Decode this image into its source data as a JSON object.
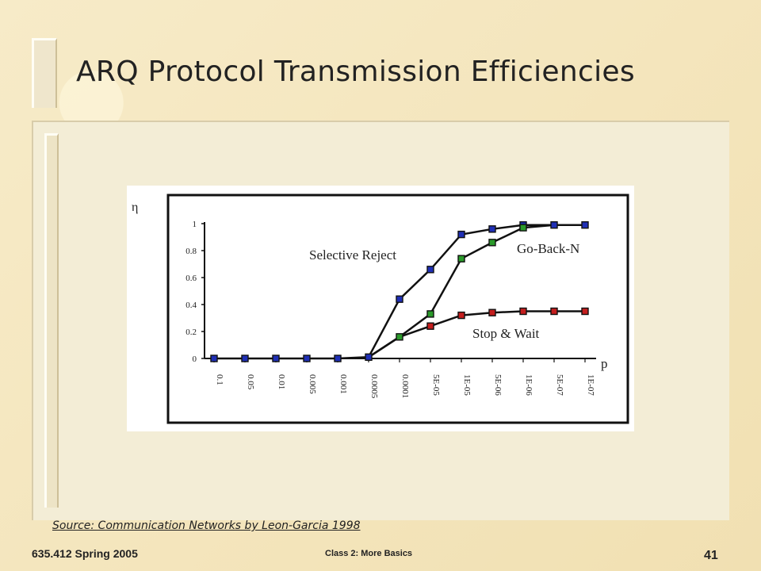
{
  "slide": {
    "title": "ARQ Protocol Transmission Efficiencies",
    "source": "Source: Communication Networks by Leon-Garcia 1998",
    "footer_left": "635.412 Spring 2005",
    "footer_center": "Class 2: More Basics",
    "page_number": "41"
  },
  "chart_data": {
    "type": "line",
    "ylabel": "η",
    "xlabel": "p",
    "ylim": [
      0,
      1
    ],
    "yticks": [
      0,
      0.2,
      0.4,
      0.6,
      0.8,
      1
    ],
    "categories": [
      "0.1",
      "0.05",
      "0.01",
      "0.005",
      "0.001",
      "0.0005",
      "0.0001",
      "5E-05",
      "1E-05",
      "5E-06",
      "1E-06",
      "5E-07",
      "1E-07"
    ],
    "series": [
      {
        "name": "Selective Reject",
        "color": "#1f2fb5",
        "values": [
          0,
          0,
          0,
          0,
          0,
          0.01,
          0.44,
          0.66,
          0.92,
          0.96,
          0.99,
          0.99,
          0.99
        ]
      },
      {
        "name": "Go-Back-N",
        "color": "#2a9a2a",
        "values": [
          null,
          null,
          null,
          null,
          null,
          null,
          0.16,
          0.33,
          0.74,
          0.86,
          0.97,
          null,
          null
        ]
      },
      {
        "name": "Stop & Wait",
        "color": "#c41e1e",
        "values": [
          null,
          null,
          null,
          null,
          null,
          null,
          null,
          0.24,
          0.32,
          0.34,
          0.35,
          0.35,
          0.35
        ]
      }
    ],
    "lines": [
      {
        "name": "Selective Reject",
        "values": [
          0,
          0,
          0,
          0,
          0,
          0.01,
          0.44,
          0.66,
          0.92,
          0.96,
          0.99,
          0.99,
          0.99
        ]
      },
      {
        "name": "Go-Back-N",
        "values": [
          null,
          null,
          null,
          null,
          null,
          0.01,
          0.16,
          0.33,
          0.74,
          0.86,
          0.97,
          0.99,
          0.99
        ]
      },
      {
        "name": "Stop & Wait",
        "values": [
          null,
          null,
          null,
          null,
          null,
          0.01,
          0.16,
          0.24,
          0.32,
          0.34,
          0.35,
          0.35,
          0.35
        ]
      }
    ],
    "annotations": [
      {
        "text": "Selective Reject"
      },
      {
        "text": "Go-Back-N"
      },
      {
        "text": "Stop & Wait"
      }
    ],
    "grid": false,
    "legend": "none"
  }
}
